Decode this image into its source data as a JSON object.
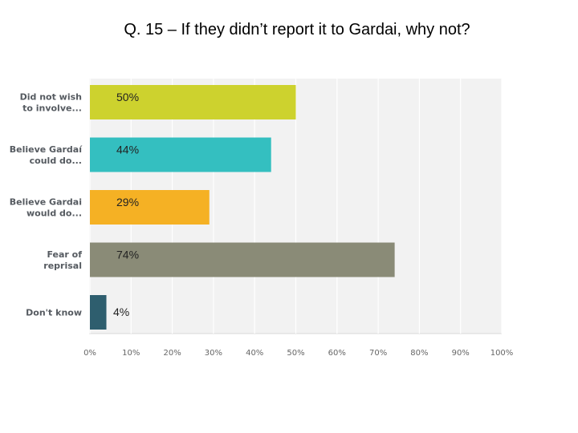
{
  "chart_data": {
    "type": "bar",
    "orientation": "horizontal",
    "title": "Q. 15 – If they didn’t report it to Gardai, why not?",
    "categories": [
      [
        "Did not wish",
        "to involve..."
      ],
      [
        "Believe Gardaí",
        "could do..."
      ],
      [
        "Believe Gardai",
        "would do..."
      ],
      [
        "Fear of",
        "reprisal"
      ],
      [
        "Don't know"
      ]
    ],
    "values": [
      50,
      44,
      29,
      74,
      4
    ],
    "data_labels": [
      "50%",
      "44%",
      "29%",
      "74%",
      "4%"
    ],
    "colors": [
      "#cdd22e",
      "#34bfc0",
      "#f5b124",
      "#8a8b77",
      "#2e5e6e"
    ],
    "xlim": [
      0,
      100
    ],
    "xticks": [
      "0%",
      "10%",
      "20%",
      "30%",
      "40%",
      "50%",
      "60%",
      "70%",
      "80%",
      "90%",
      "100%"
    ],
    "grid": true,
    "plot_background": "#f2f2f2"
  }
}
